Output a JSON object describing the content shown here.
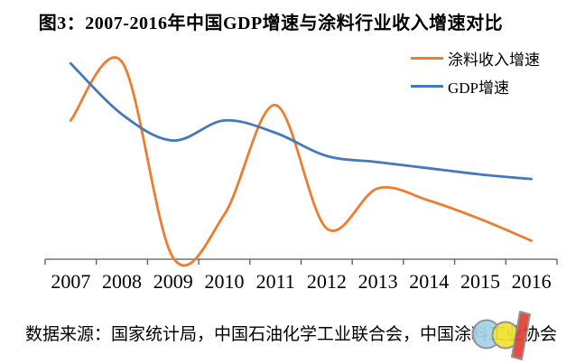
{
  "title": "图3：2007-2016年中国GDP增速与涂料行业收入增速对比",
  "legend": [
    {
      "label": "涂料收入增速",
      "color": "#ED7D31"
    },
    {
      "label": "GDP增速",
      "color": "#4579BE"
    }
  ],
  "source_note": "数据来源：国家统计局，中国石油化学工业联合会，中国涂料工业协会",
  "axis_color": "#595959",
  "logo_colors": {
    "blue": "#A5D3E8",
    "yellow": "#F0E132",
    "red": "#E04038",
    "outline": "#8C8C8C"
  },
  "chart_data": {
    "type": "line",
    "smooth": true,
    "title": "图3：2007-2016年中国GDP增速与涂料行业收入增速对比",
    "categories": [
      "2007",
      "2008",
      "2009",
      "2010",
      "2011",
      "2012",
      "2013",
      "2014",
      "2015",
      "2016"
    ],
    "series": [
      {
        "name": "涂料收入增速",
        "color": "#ED7D31",
        "values": [
          10.5,
          14.3,
          1.6,
          4.4,
          11.5,
          3.5,
          6.1,
          5.3,
          4.1,
          2.7
        ]
      },
      {
        "name": "GDP增速",
        "color": "#4579BE",
        "values": [
          14.2,
          10.9,
          9.2,
          10.5,
          9.7,
          8.2,
          7.8,
          7.4,
          7.0,
          6.7
        ]
      }
    ],
    "xlabel": "",
    "ylabel": "",
    "y_axis_visible": false,
    "approx_ylim": [
      1.5,
      14.8
    ],
    "grid": false,
    "legend_position": "top-right"
  }
}
